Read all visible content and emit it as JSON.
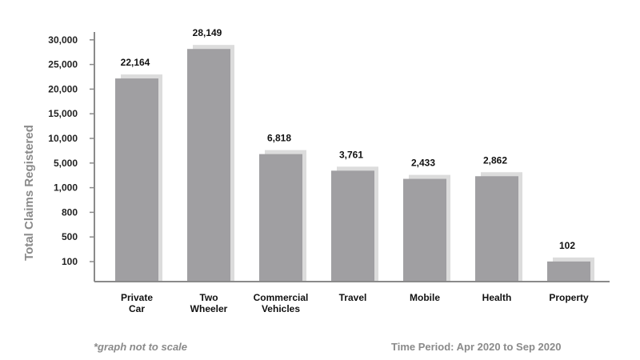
{
  "chart_data": {
    "type": "bar",
    "categories": [
      "Private Car",
      "Two Wheeler",
      "Commercial Vehicles",
      "Travel",
      "Mobile",
      "Health",
      "Property"
    ],
    "category_lines": [
      [
        "Private",
        "Car"
      ],
      [
        "Two",
        "Wheeler"
      ],
      [
        "Commercial",
        "Vehicles"
      ],
      [
        "Travel"
      ],
      [
        "Mobile"
      ],
      [
        "Health"
      ],
      [
        "Property"
      ]
    ],
    "values": [
      22164,
      28149,
      6818,
      3761,
      2433,
      2862,
      102
    ],
    "value_labels": [
      "22,164",
      "28,149",
      "6,818",
      "3,761",
      "2,433",
      "2,862",
      "102"
    ],
    "yticks": [
      "100",
      "500",
      "800",
      "1,000",
      "5,000",
      "10,000",
      "15,000",
      "20,000",
      "25,000",
      "30,000"
    ],
    "ytick_values": [
      100,
      500,
      800,
      1000,
      5000,
      10000,
      15000,
      20000,
      25000,
      30000
    ],
    "ylabel": "Total Claims Registered",
    "xlabel": "",
    "title": "",
    "grid": false,
    "bar_color": "#a09fa2",
    "shadow_color": "#dcdcdc",
    "axis_color": "#8a8a8a"
  },
  "footer": {
    "note": "*graph not to scale",
    "period": "Time Period: Apr 2020 to Sep 2020"
  }
}
